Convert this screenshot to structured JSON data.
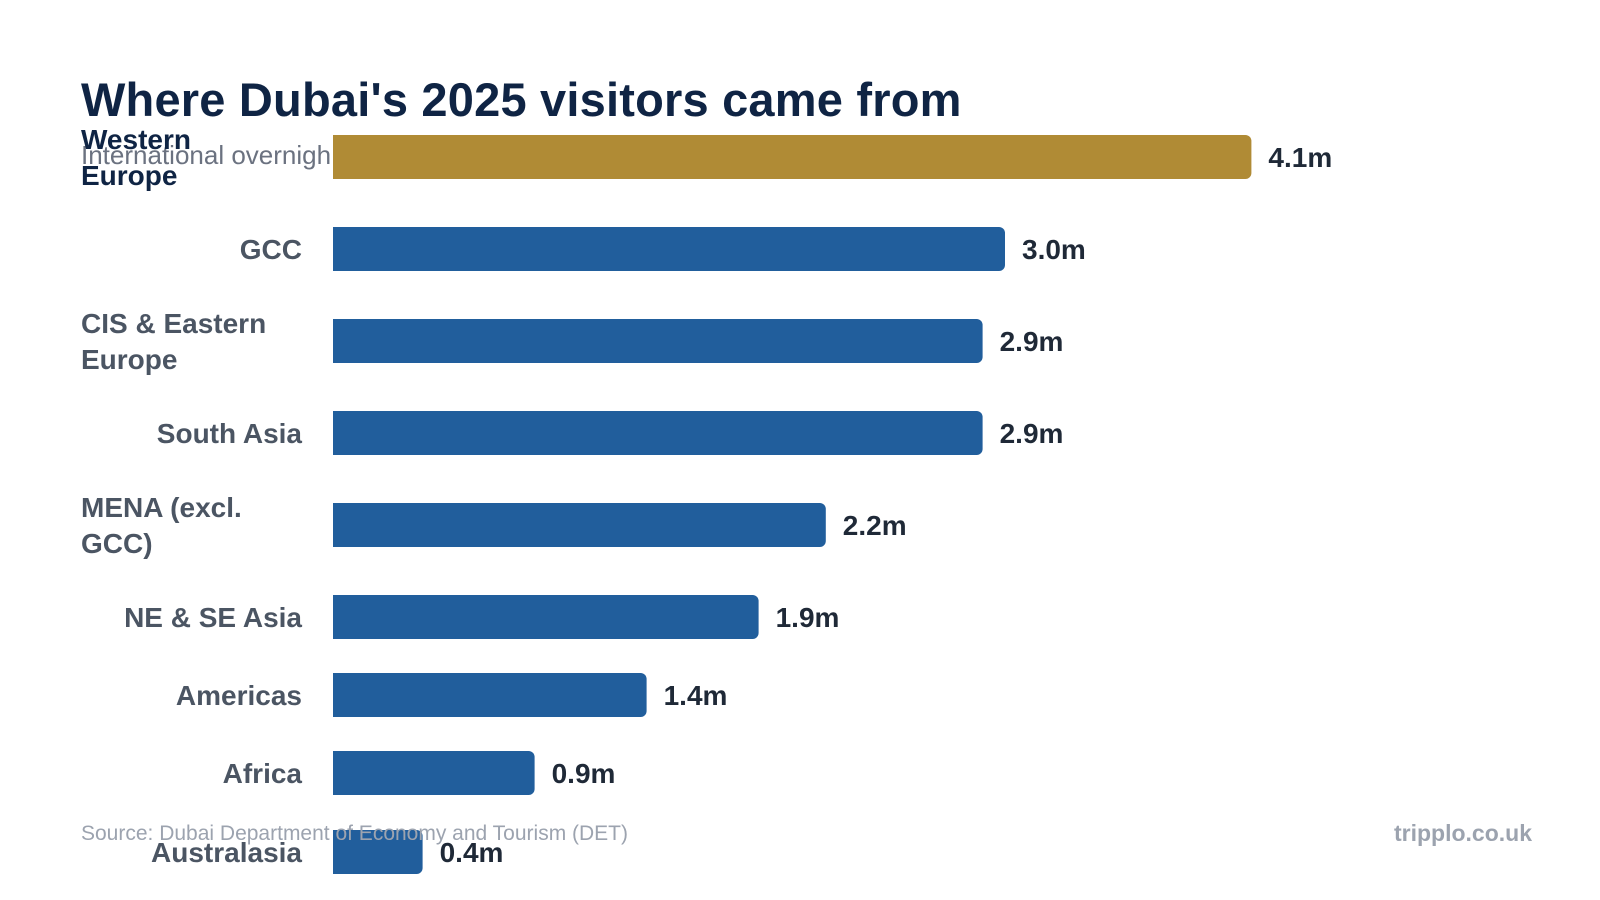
{
  "title": "Where Dubai's 2025 visitors came from",
  "subtitle": "International overnight visitors",
  "source": "Source: Dubai Department of Economy and Tourism (DET)",
  "brand": "tripplo.co.uk",
  "colors": {
    "highlight": "#b08b35",
    "bar": "#215e9c",
    "title": "#0f2444"
  },
  "chart_data": {
    "type": "bar",
    "orientation": "horizontal",
    "unit": "m",
    "categories": [
      {
        "label_lines": [
          "Western",
          "Europe"
        ],
        "value": 4.1,
        "label": "4.1m",
        "highlight": true
      },
      {
        "label_lines": [
          "GCC"
        ],
        "value": 3.0,
        "label": "3.0m",
        "highlight": false
      },
      {
        "label_lines": [
          "CIS & Eastern",
          "Europe"
        ],
        "value": 2.9,
        "label": "2.9m",
        "highlight": false
      },
      {
        "label_lines": [
          "South Asia"
        ],
        "value": 2.9,
        "label": "2.9m",
        "highlight": false
      },
      {
        "label_lines": [
          "MENA (excl.",
          "GCC)"
        ],
        "value": 2.2,
        "label": "2.2m",
        "highlight": false
      },
      {
        "label_lines": [
          "NE & SE Asia"
        ],
        "value": 1.9,
        "label": "1.9m",
        "highlight": false
      },
      {
        "label_lines": [
          "Americas"
        ],
        "value": 1.4,
        "label": "1.4m",
        "highlight": false
      },
      {
        "label_lines": [
          "Africa"
        ],
        "value": 0.9,
        "label": "0.9m",
        "highlight": false
      },
      {
        "label_lines": [
          "Australasia"
        ],
        "value": 0.4,
        "label": "0.4m",
        "highlight": false
      }
    ],
    "values": [
      4.1,
      3.0,
      2.9,
      2.9,
      2.2,
      1.9,
      1.4,
      0.9,
      0.4
    ],
    "xlim": [
      0,
      4.1
    ],
    "grid": false,
    "legend": "none"
  }
}
